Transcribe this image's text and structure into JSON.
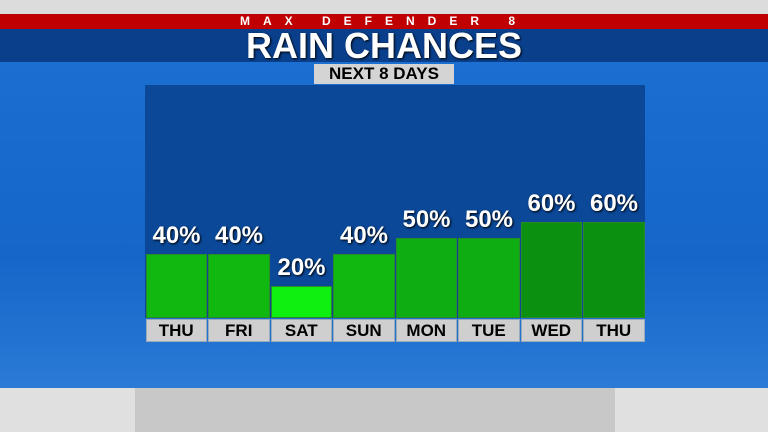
{
  "header": {
    "brand": "MAX DEFENDER 8",
    "title": "RAIN CHANCES",
    "subtitle": "NEXT 8 DAYS"
  },
  "chart_data": {
    "type": "bar",
    "title": "RAIN CHANCES",
    "subtitle": "NEXT 8 DAYS",
    "categories": [
      "THU",
      "FRI",
      "SAT",
      "SUN",
      "MON",
      "TUE",
      "WED",
      "THU"
    ],
    "values": [
      40,
      40,
      20,
      40,
      50,
      50,
      60,
      60
    ],
    "labels": [
      "40%",
      "40%",
      "20%",
      "40%",
      "50%",
      "50%",
      "60%",
      "60%"
    ],
    "ylim": [
      0,
      100
    ],
    "grid": false,
    "colors": {
      "20": "#10f010",
      "40": "#10b810",
      "50": "#0eae12",
      "60": "#0c9010"
    }
  }
}
